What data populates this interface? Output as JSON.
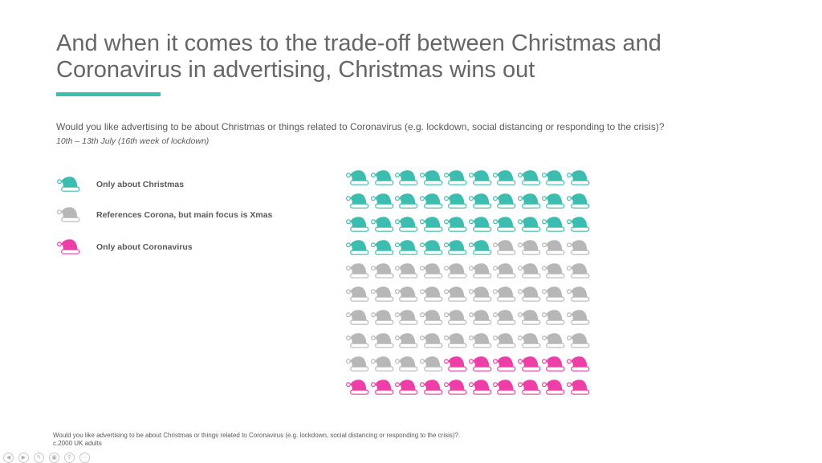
{
  "slide": {
    "title": "And when it comes to the trade-off between Christmas and Coronavirus in advertising, Christmas wins out",
    "question": "Would you like advertising to be about Christmas or things related to Coronavirus (e.g. lockdown, social distancing or responding to the crisis)?",
    "date_range": "10th – 13th July (16th week of lockdown)",
    "footnote_line1": "Would you like advertising to be about Christmas or things related to Coronavirus (e.g. lockdown, social distancing or responding to the crisis)?.",
    "footnote_line2": "c.2000 UK adults",
    "accent_color": "#3dbdaf"
  },
  "legend": [
    {
      "label": "Only about Christmas",
      "color": "#3dbdaf"
    },
    {
      "label": "References Corona, but main focus is Xmas",
      "color": "#b7b7b7"
    },
    {
      "label": "Only about Coronavirus",
      "color": "#ee3fa8"
    }
  ],
  "chart_data": {
    "type": "pictogram",
    "icon": "santa-hat-icon",
    "total_icons": 100,
    "columns": 10,
    "rows": 10,
    "series": [
      {
        "name": "Only about Christmas",
        "value": 36,
        "color": "#3dbdaf"
      },
      {
        "name": "References Corona, but main focus is Xmas",
        "value": 48,
        "color": "#b7b7b7"
      },
      {
        "name": "Only about Coronavirus",
        "value": 16,
        "color": "#ee3fa8"
      }
    ]
  },
  "nav_icons": [
    "prev-icon",
    "next-icon",
    "pen-icon",
    "slides-icon",
    "zoom-icon",
    "more-icon"
  ]
}
